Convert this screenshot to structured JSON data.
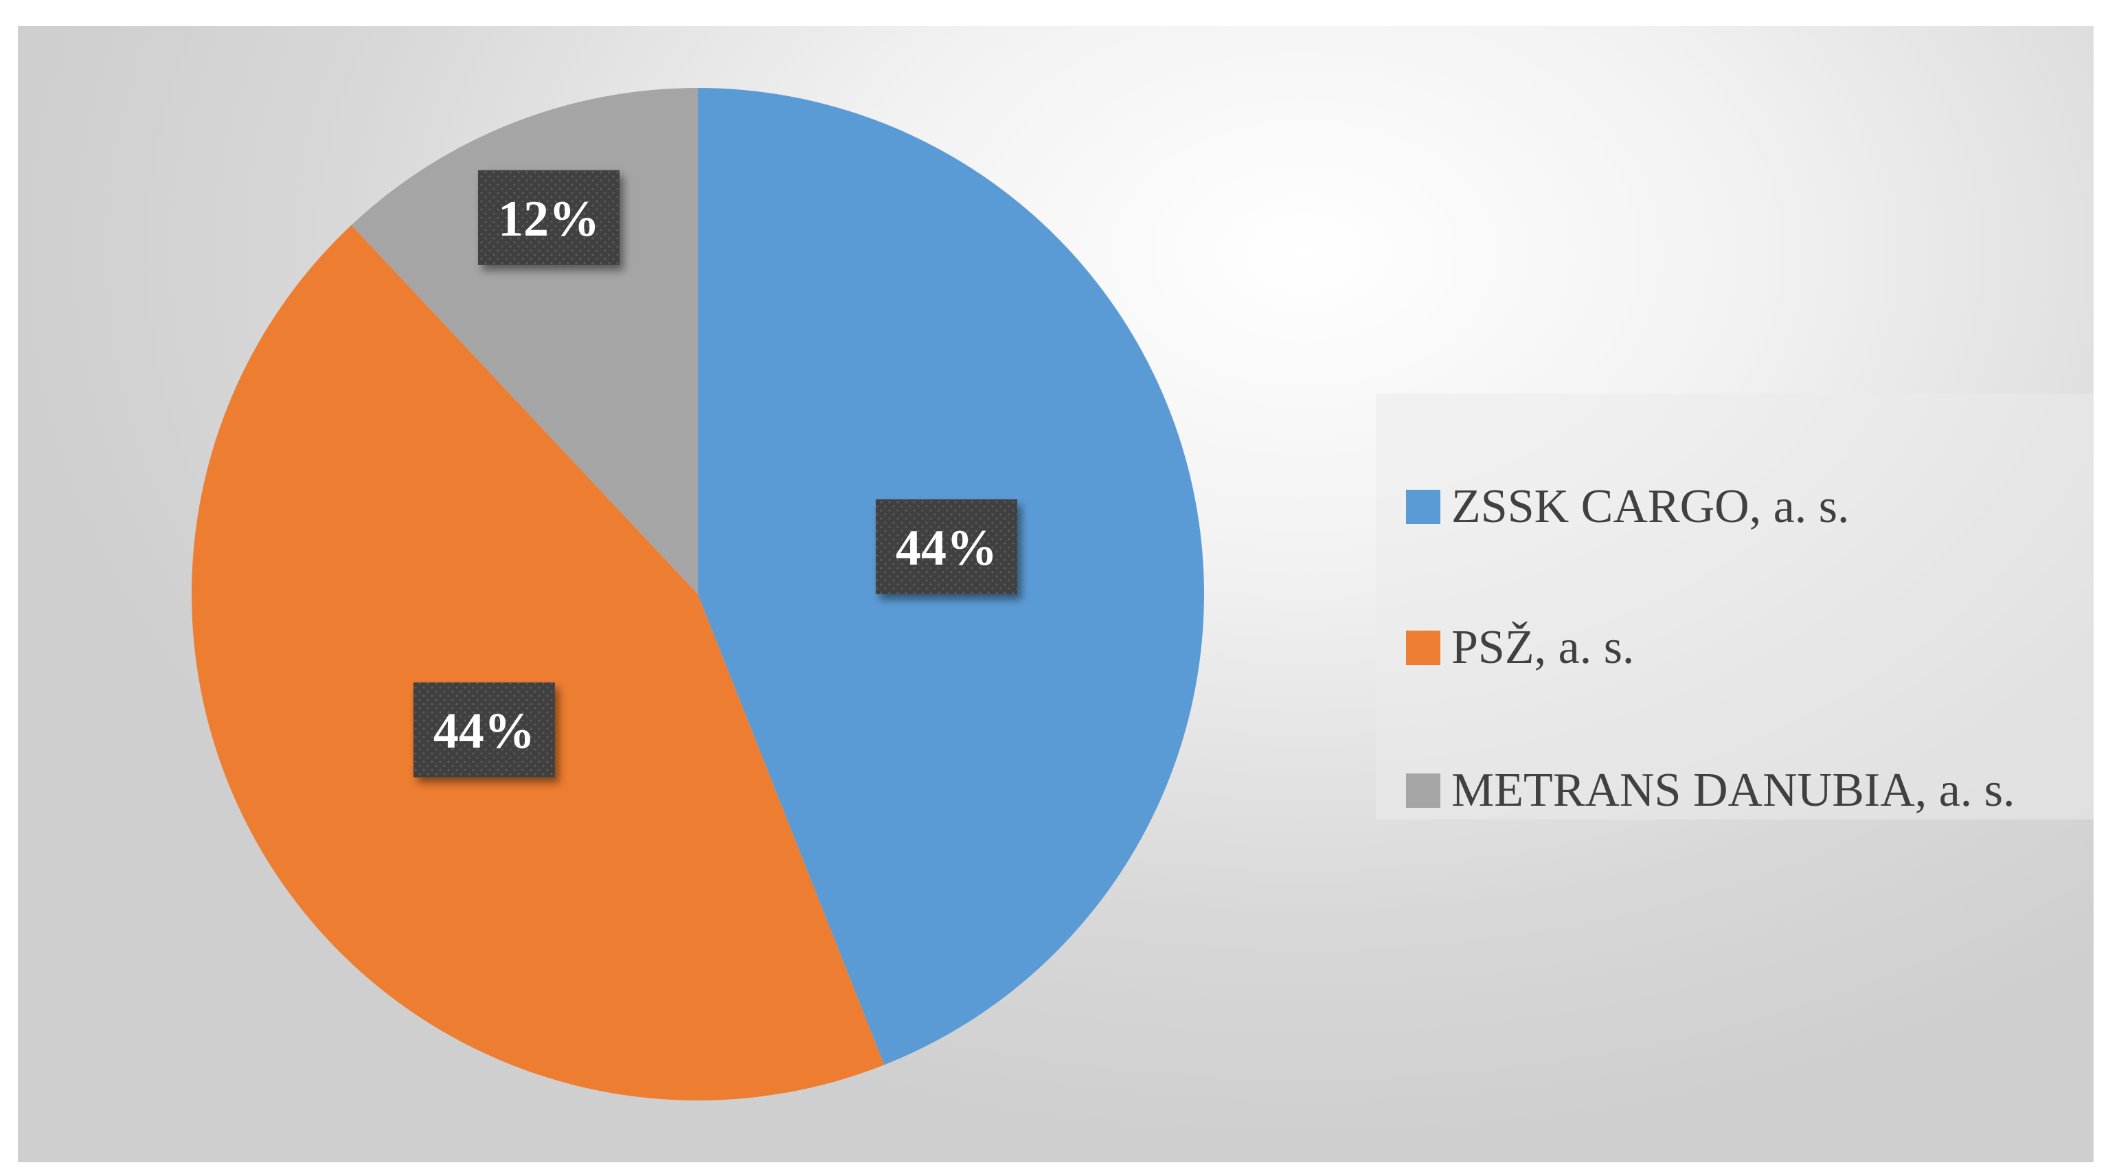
{
  "chart_data": {
    "type": "pie",
    "categories": [
      "ZSSK CARGO, a. s.",
      "PSŽ, a. s.",
      "METRANS DANUBIA, a. s."
    ],
    "values": [
      44,
      44,
      12
    ],
    "value_labels": [
      "44%",
      "44%",
      "12%"
    ],
    "colors": [
      "#5B9BD5",
      "#ED7D31",
      "#A5A5A5"
    ],
    "label_box_color": "#404040",
    "label_text_color": "#FFFFFF",
    "legend_text_color": "#404040",
    "start_angle_deg": 0,
    "direction": "clockwise",
    "legend_position": "right"
  }
}
